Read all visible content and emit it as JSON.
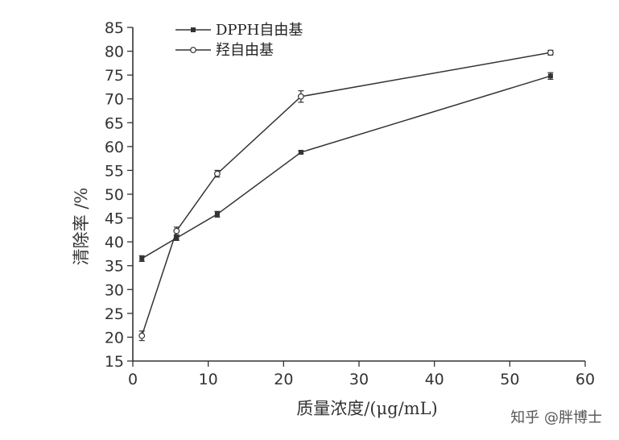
{
  "chart_data": {
    "type": "line",
    "xlabel": "质量浓度/(μg/mL)",
    "ylabel": "清除率 /%",
    "xlim": [
      0,
      60
    ],
    "ylim": [
      15,
      85
    ],
    "xticks": [
      0,
      10,
      20,
      30,
      40,
      50,
      60
    ],
    "yticks": [
      15,
      20,
      25,
      30,
      35,
      40,
      45,
      50,
      55,
      60,
      65,
      70,
      75,
      80,
      85
    ],
    "grid": false,
    "legend_position": "top-left",
    "series": [
      {
        "name": "DPPH自由基",
        "marker": "filled-square",
        "x": [
          1.2,
          5.8,
          11.2,
          22.3,
          55.4
        ],
        "y": [
          36.5,
          40.8,
          45.8,
          58.8,
          74.8
        ],
        "err": [
          0.6,
          0.5,
          0.6,
          0.3,
          0.7
        ]
      },
      {
        "name": "羟自由基",
        "marker": "open-circle",
        "x": [
          1.2,
          5.8,
          11.2,
          22.3,
          55.4
        ],
        "y": [
          20.3,
          42.3,
          54.3,
          70.5,
          79.7
        ],
        "err": [
          1.0,
          0.8,
          0.7,
          1.2,
          0.5
        ]
      }
    ]
  },
  "watermark": "知乎 @胖博士",
  "colors": {
    "line": "#333333",
    "axis": "#333333",
    "text": "#333333"
  }
}
